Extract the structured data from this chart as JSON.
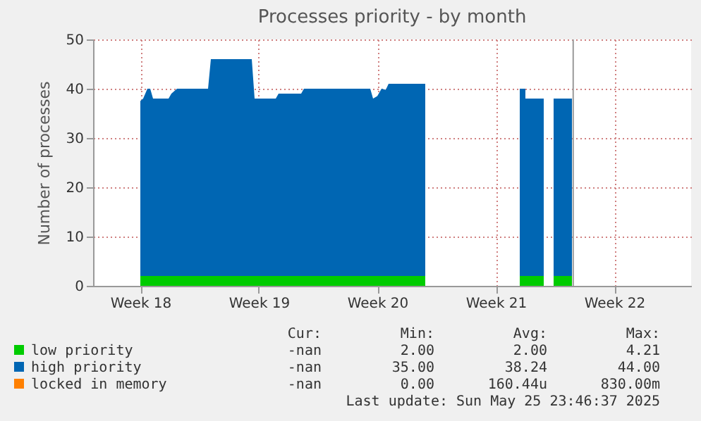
{
  "chart_data": {
    "type": "area",
    "title": "Processes priority - by month",
    "ylabel": "Number of processes",
    "x": [
      "2025-04-30T10:00",
      "2025-04-30T14:00",
      "2025-04-30T20:00",
      "2025-05-01T00:00",
      "2025-05-01T04:00",
      "2025-05-02T02:00",
      "2025-05-02T06:00",
      "2025-05-02T14:00",
      "2025-05-04T10:00",
      "2025-05-04T14:00",
      "2025-05-07T00:00",
      "2025-05-07T04:00",
      "2025-05-08T10:00",
      "2025-05-08T14:00",
      "2025-05-09T22:00",
      "2025-05-10T02:00",
      "2025-05-14T00:00",
      "2025-05-14T04:00",
      "2025-05-14T10:00",
      "2025-05-14T16:00",
      "2025-05-14T22:00",
      "2025-05-15T02:00",
      "2025-05-17T06:00",
      "2025-05-17T22:00",
      "2025-05-22T20:00",
      "2025-05-23T04:00",
      "2025-05-23T04:00",
      "2025-05-23T12:00",
      "2025-05-24T06:00",
      "2025-05-24T08:00",
      "2025-05-24T20:00",
      "2025-05-25T22:00"
    ],
    "series": [
      {
        "name": "low priority",
        "color": "#00cc00",
        "values": [
          2,
          2,
          2,
          2,
          2,
          2,
          2,
          2,
          2,
          2,
          2,
          2,
          2,
          2,
          2,
          2,
          2,
          2,
          2,
          2,
          2,
          2,
          2,
          null,
          2,
          2,
          2,
          2,
          2,
          null,
          2,
          2
        ]
      },
      {
        "name": "high priority",
        "color": "#0066b3",
        "values": [
          35.5,
          36,
          38,
          38,
          36,
          36,
          37,
          38,
          38,
          44,
          44,
          36,
          36,
          37,
          37,
          38,
          38,
          36,
          36.5,
          38,
          37.8,
          39,
          39,
          null,
          38,
          38,
          36,
          36,
          36,
          null,
          36,
          36
        ]
      },
      {
        "name": "locked in memory",
        "color": "#ff8000",
        "values": [
          null,
          null,
          null,
          null,
          null,
          null,
          null,
          null,
          null,
          null,
          null,
          null,
          null,
          null,
          null,
          null,
          null,
          null,
          null,
          null,
          null,
          null,
          null,
          null,
          null,
          null,
          null,
          null,
          null,
          null,
          null,
          null
        ]
      }
    ],
    "stacked": true,
    "xlim": [
      "2025-04-27T15:00",
      "2025-06-01T23:00"
    ],
    "xticks": [
      {
        "value": "2025-04-30T10:00",
        "label": "Week 18"
      },
      {
        "value": "2025-05-07T10:00",
        "label": "Week 19"
      },
      {
        "value": "2025-05-14T10:00",
        "label": "Week 20"
      },
      {
        "value": "2025-05-21T10:00",
        "label": "Week 21"
      },
      {
        "value": "2025-05-28T10:00",
        "label": "Week 22"
      }
    ],
    "ylim": [
      0,
      50
    ],
    "yticks": [
      0,
      10,
      20,
      30,
      40,
      50
    ],
    "grid": true,
    "legend": "bottom",
    "ref_lines": [
      {
        "axis": "x",
        "value": "2025-05-25T23:46",
        "color": "#999999"
      }
    ],
    "annotations": [
      "Cur:",
      "Min:",
      "Avg:",
      "Max:",
      "-nan",
      "2.00",
      "2.00",
      "4.21",
      "-nan",
      "35.00",
      "38.24",
      "44.00",
      "-nan",
      "0.00",
      "160.44u",
      "830.00m",
      "Last update: Sun May 25 23:46:37 2025"
    ]
  }
}
